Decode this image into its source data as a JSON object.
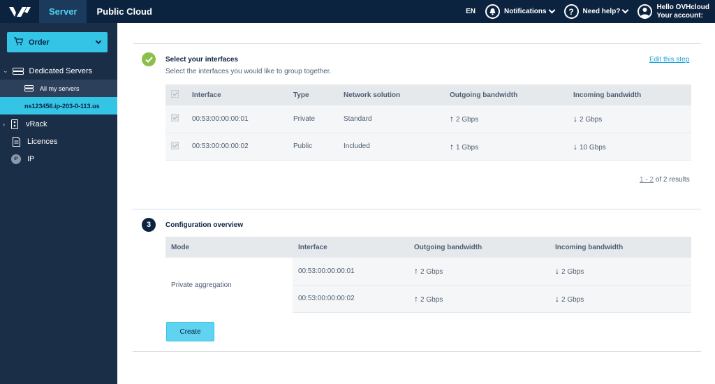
{
  "topbar": {
    "tabs": [
      {
        "label": "Server"
      },
      {
        "label": "Public Cloud"
      }
    ],
    "lang": "EN",
    "notifications": "Notifications",
    "help": "Need help?",
    "greeting": "Hello OVHcloud",
    "account": "Your account:"
  },
  "sidebar": {
    "order_label": "Order",
    "items": [
      {
        "label": "Dedicated Servers"
      },
      {
        "label": "All my servers"
      },
      {
        "label": "ns123456.ip-203-0-113.us"
      },
      {
        "label": "vRack"
      },
      {
        "label": "Licences"
      },
      {
        "label": "IP"
      }
    ]
  },
  "step2": {
    "title": "Select your interfaces",
    "subtitle": "Select the interfaces you would like to group together.",
    "edit": "Edit this step",
    "columns": [
      "Interface",
      "Type",
      "Network solution",
      "Outgoing bandwidth",
      "Incoming bandwidth"
    ],
    "rows": [
      {
        "interface": "00:53:00:00:00:01",
        "type": "Private",
        "solution": "Standard",
        "out": "2 Gbps",
        "in": "2 Gbps"
      },
      {
        "interface": "00:53:00:00:00:02",
        "type": "Public",
        "solution": "Included",
        "out": "1 Gbps",
        "in": "10 Gbps"
      }
    ],
    "pager_range": "1 - 2",
    "pager_total": "of 2 results"
  },
  "step3": {
    "number": "3",
    "title": "Configuration overview",
    "columns": [
      "Mode",
      "Interface",
      "Outgoing bandwidth",
      "Incoming bandwidth"
    ],
    "mode": "Private aggregation",
    "rows": [
      {
        "interface": "00:53:00:00:00:01",
        "out": "2 Gbps",
        "in": "2 Gbps"
      },
      {
        "interface": "00:53:00:00:00:02",
        "out": "2 Gbps",
        "in": "2 Gbps"
      }
    ],
    "create": "Create"
  },
  "colors": {
    "navy": "#0c2340",
    "accent": "#33c4e6",
    "success": "#8cbf4a"
  }
}
